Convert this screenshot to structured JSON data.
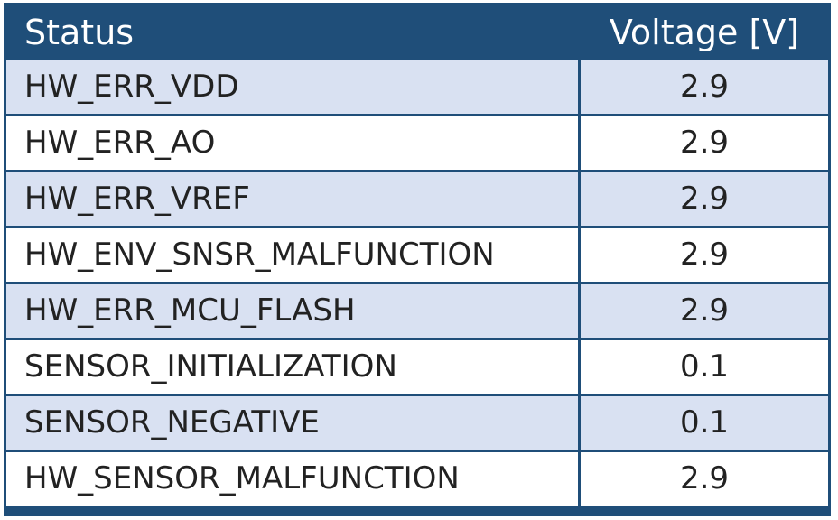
{
  "table": {
    "headers": {
      "status": "Status",
      "voltage": "Voltage [V]"
    },
    "rows": [
      {
        "status": "HW_ERR_VDD",
        "voltage": "2.9"
      },
      {
        "status": "HW_ERR_AO",
        "voltage": "2.9"
      },
      {
        "status": "HW_ERR_VREF",
        "voltage": "2.9"
      },
      {
        "status": "HW_ENV_SNSR_MALFUNCTION",
        "voltage": "2.9"
      },
      {
        "status": "HW_ERR_MCU_FLASH",
        "voltage": "2.9"
      },
      {
        "status": "SENSOR_INITIALIZATION",
        "voltage": "0.1"
      },
      {
        "status": "SENSOR_NEGATIVE",
        "voltage": "0.1"
      },
      {
        "status": "HW_SENSOR_MALFUNCTION",
        "voltage": "2.9"
      }
    ]
  },
  "colors": {
    "header_bg": "#1f4e79",
    "shaded_row": "#d9e1f2",
    "plain_row": "#ffffff"
  }
}
